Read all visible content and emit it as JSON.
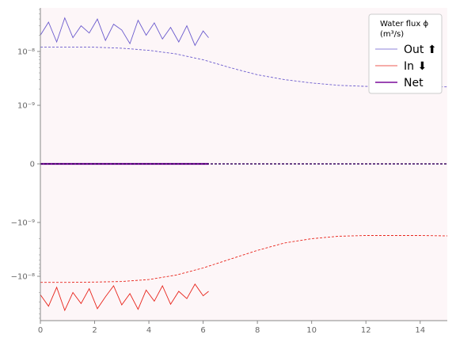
{
  "chart_data": {
    "type": "line",
    "xlabel": "",
    "ylabel": "",
    "xlim": [
      0,
      15
    ],
    "yscale": "symlog",
    "x_ticks": [
      0,
      2,
      4,
      6,
      8,
      10,
      12,
      14
    ],
    "y_ticks": [
      {
        "value": 1e-08,
        "label": "10⁻⁸"
      },
      {
        "value": 1e-09,
        "label": "10⁻⁹"
      },
      {
        "value": 0,
        "label": "0"
      },
      {
        "value": -1e-09,
        "label": "−10⁻⁹"
      },
      {
        "value": -1e-08,
        "label": "−10⁻⁸"
      }
    ],
    "grid": false,
    "legend_placement": "top-right",
    "legend": {
      "title_line1": "Water flux ϕ",
      "title_line2": "(m³/s)",
      "items": [
        {
          "label": "Out ⬆",
          "color": "#6a5acd",
          "width": 0.8
        },
        {
          "label": "In ⬇",
          "color": "#e8231a",
          "width": 0.8
        },
        {
          "label": "Net",
          "color": "#7a0a9a",
          "width": 1.6
        }
      ]
    },
    "background": "#fdf6f8",
    "series": [
      {
        "name": "Out ⬆",
        "style": "solid",
        "color": "#6a5acd",
        "x": [
          0.0,
          0.3,
          0.6,
          0.9,
          1.2,
          1.5,
          1.8,
          2.1,
          2.4,
          2.7,
          3.0,
          3.3,
          3.6,
          3.9,
          4.2,
          4.5,
          4.8,
          5.1,
          5.4,
          5.7,
          6.0,
          6.2
        ],
        "y": [
          2e-08,
          3.5e-08,
          1.5e-08,
          4.2e-08,
          1.8e-08,
          3e-08,
          2.2e-08,
          4e-08,
          1.6e-08,
          3.2e-08,
          2.5e-08,
          1.4e-08,
          3.8e-08,
          2e-08,
          3.4e-08,
          1.7e-08,
          2.8e-08,
          1.5e-08,
          3e-08,
          1.3e-08,
          2.4e-08,
          1.8e-08
        ]
      },
      {
        "name": "Out ⬆",
        "style": "dashed",
        "color": "#6a5acd",
        "x": [
          0,
          1,
          2,
          3,
          4,
          5,
          6,
          7,
          8,
          9,
          10,
          11,
          12,
          13,
          14,
          15
        ],
        "y": [
          1.2e-08,
          1.2e-08,
          1.2e-08,
          1.15e-08,
          1.05e-08,
          9e-09,
          7e-09,
          5e-09,
          3.7e-09,
          3e-09,
          2.6e-09,
          2.35e-09,
          2.25e-09,
          2.2e-09,
          2.2e-09,
          2.2e-09
        ]
      },
      {
        "name": "In ⬇",
        "style": "solid",
        "color": "#e8231a",
        "x": [
          0.0,
          0.3,
          0.6,
          0.9,
          1.2,
          1.5,
          1.8,
          2.1,
          2.4,
          2.7,
          3.0,
          3.3,
          3.6,
          3.9,
          4.2,
          4.5,
          4.8,
          5.1,
          5.4,
          5.7,
          6.0,
          6.2
        ],
        "y": [
          -2.2e-08,
          -3.6e-08,
          -1.6e-08,
          -4.3e-08,
          -2e-08,
          -3.2e-08,
          -1.7e-08,
          -4e-08,
          -2.4e-08,
          -1.5e-08,
          -3.4e-08,
          -2.1e-08,
          -4.1e-08,
          -1.8e-08,
          -2.9e-08,
          -1.5e-08,
          -3.3e-08,
          -1.9e-08,
          -2.6e-08,
          -1.4e-08,
          -2.3e-08,
          -1.9e-08
        ]
      },
      {
        "name": "In ⬇",
        "style": "dashed",
        "color": "#e8231a",
        "x": [
          0,
          1,
          2,
          3,
          4,
          5,
          6,
          7,
          8,
          9,
          10,
          11,
          12,
          13,
          14,
          15
        ],
        "y": [
          -1.3e-08,
          -1.3e-08,
          -1.28e-08,
          -1.25e-08,
          -1.15e-08,
          -9.5e-09,
          -7e-09,
          -4.8e-09,
          -3.3e-09,
          -2.4e-09,
          -2e-09,
          -1.8e-09,
          -1.75e-09,
          -1.75e-09,
          -1.75e-09,
          -1.78e-09
        ]
      },
      {
        "name": "Net",
        "style": "solid",
        "color": "#7a0a9a",
        "x": [
          0,
          6.2
        ],
        "y": [
          0,
          0
        ]
      },
      {
        "name": "Net",
        "style": "dashed",
        "color": "#3a0660",
        "x": [
          0,
          15
        ],
        "y": [
          0,
          0
        ]
      }
    ]
  }
}
